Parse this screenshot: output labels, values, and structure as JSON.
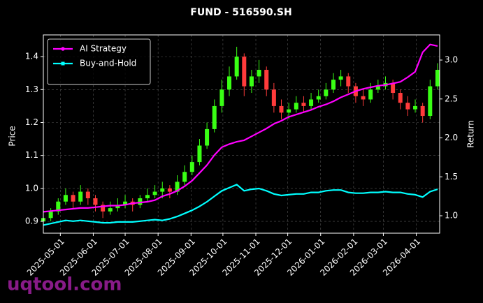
{
  "chart_data": {
    "type": "candlestick",
    "title": "FUND - 516590.SH",
    "ylabel": "Price",
    "y2label": "Return",
    "watermark": "uqtool.com",
    "x": [
      "2025-04-15",
      "2025-04-22",
      "2025-04-29",
      "2025-05-06",
      "2025-05-13",
      "2025-05-20",
      "2025-05-27",
      "2025-06-03",
      "2025-06-10",
      "2025-06-17",
      "2025-06-24",
      "2025-07-01",
      "2025-07-08",
      "2025-07-15",
      "2025-07-22",
      "2025-07-29",
      "2025-08-05",
      "2025-08-12",
      "2025-08-19",
      "2025-08-26",
      "2025-09-02",
      "2025-09-09",
      "2025-09-16",
      "2025-09-23",
      "2025-09-30",
      "2025-10-07",
      "2025-10-14",
      "2025-10-21",
      "2025-10-28",
      "2025-11-04",
      "2025-11-11",
      "2025-11-18",
      "2025-11-25",
      "2025-12-02",
      "2025-12-09",
      "2025-12-16",
      "2025-12-23",
      "2025-12-30",
      "2026-01-06",
      "2026-01-13",
      "2026-01-20",
      "2026-01-27",
      "2026-02-03",
      "2026-02-10",
      "2026-02-17",
      "2026-02-24",
      "2026-03-03",
      "2026-03-10",
      "2026-03-17",
      "2026-03-24",
      "2026-03-31",
      "2026-04-07",
      "2026-04-14",
      "2026-04-21"
    ],
    "open": [
      0.9,
      0.91,
      0.93,
      0.96,
      0.98,
      0.96,
      0.99,
      0.97,
      0.95,
      0.93,
      0.94,
      0.95,
      0.96,
      0.95,
      0.97,
      0.98,
      0.99,
      1.0,
      0.99,
      1.02,
      1.05,
      1.08,
      1.13,
      1.18,
      1.25,
      1.3,
      1.34,
      1.4,
      1.31,
      1.34,
      1.36,
      1.3,
      1.25,
      1.23,
      1.24,
      1.26,
      1.25,
      1.27,
      1.28,
      1.3,
      1.33,
      1.34,
      1.31,
      1.28,
      1.27,
      1.3,
      1.31,
      1.32,
      1.29,
      1.26,
      1.24,
      1.25,
      1.22,
      1.31
    ],
    "high": [
      0.92,
      0.94,
      0.97,
      1.0,
      0.99,
      1.01,
      1.0,
      0.98,
      0.96,
      0.96,
      0.97,
      0.98,
      0.97,
      0.98,
      1.0,
      1.01,
      1.02,
      1.01,
      1.04,
      1.07,
      1.1,
      1.15,
      1.2,
      1.27,
      1.33,
      1.37,
      1.43,
      1.41,
      1.36,
      1.39,
      1.37,
      1.32,
      1.27,
      1.26,
      1.28,
      1.28,
      1.29,
      1.3,
      1.32,
      1.35,
      1.36,
      1.35,
      1.32,
      1.3,
      1.32,
      1.33,
      1.34,
      1.33,
      1.3,
      1.28,
      1.27,
      1.26,
      1.33,
      1.38
    ],
    "low": [
      0.88,
      0.9,
      0.92,
      0.95,
      0.94,
      0.95,
      0.95,
      0.93,
      0.91,
      0.92,
      0.93,
      0.94,
      0.93,
      0.94,
      0.96,
      0.97,
      0.97,
      0.97,
      0.98,
      1.01,
      1.04,
      1.07,
      1.12,
      1.17,
      1.23,
      1.28,
      1.33,
      1.28,
      1.29,
      1.32,
      1.28,
      1.23,
      1.21,
      1.21,
      1.23,
      1.23,
      1.24,
      1.26,
      1.27,
      1.29,
      1.31,
      1.29,
      1.26,
      1.25,
      1.26,
      1.29,
      1.3,
      1.27,
      1.24,
      1.22,
      1.23,
      1.2,
      1.21,
      1.3
    ],
    "close": [
      0.91,
      0.93,
      0.96,
      0.98,
      0.96,
      0.99,
      0.97,
      0.95,
      0.93,
      0.94,
      0.95,
      0.96,
      0.95,
      0.97,
      0.98,
      0.99,
      1.0,
      0.99,
      1.02,
      1.05,
      1.08,
      1.13,
      1.18,
      1.25,
      1.3,
      1.34,
      1.4,
      1.31,
      1.34,
      1.36,
      1.3,
      1.25,
      1.23,
      1.24,
      1.26,
      1.25,
      1.27,
      1.28,
      1.3,
      1.33,
      1.34,
      1.31,
      1.28,
      1.27,
      1.3,
      1.31,
      1.32,
      1.29,
      1.26,
      1.24,
      1.25,
      1.22,
      1.31,
      1.36
    ],
    "up_color": "#39ff14",
    "down_color": "#ff3b3b",
    "series": [
      {
        "name": "AI Strategy",
        "type": "line",
        "axis": "y2",
        "color": "#ff00ff",
        "marker": "circle",
        "values": [
          1.05,
          1.06,
          1.07,
          1.08,
          1.09,
          1.1,
          1.1,
          1.11,
          1.12,
          1.13,
          1.13,
          1.14,
          1.16,
          1.17,
          1.18,
          1.2,
          1.25,
          1.28,
          1.32,
          1.38,
          1.45,
          1.55,
          1.65,
          1.78,
          1.88,
          1.92,
          1.95,
          1.97,
          2.02,
          2.07,
          2.12,
          2.18,
          2.22,
          2.27,
          2.3,
          2.33,
          2.36,
          2.4,
          2.43,
          2.47,
          2.52,
          2.56,
          2.6,
          2.63,
          2.65,
          2.67,
          2.68,
          2.7,
          2.72,
          2.78,
          2.85,
          3.1,
          3.2,
          3.18
        ]
      },
      {
        "name": "Buy-and-Hold",
        "type": "line",
        "axis": "y2",
        "color": "#00ffff",
        "marker": "square",
        "values": [
          0.88,
          0.9,
          0.92,
          0.94,
          0.93,
          0.94,
          0.93,
          0.92,
          0.91,
          0.91,
          0.92,
          0.92,
          0.92,
          0.93,
          0.94,
          0.95,
          0.94,
          0.96,
          0.99,
          1.03,
          1.07,
          1.12,
          1.18,
          1.25,
          1.32,
          1.36,
          1.4,
          1.32,
          1.34,
          1.35,
          1.32,
          1.28,
          1.26,
          1.27,
          1.28,
          1.28,
          1.3,
          1.3,
          1.32,
          1.33,
          1.33,
          1.3,
          1.29,
          1.29,
          1.3,
          1.3,
          1.31,
          1.3,
          1.3,
          1.28,
          1.27,
          1.24,
          1.31,
          1.34
        ]
      }
    ],
    "xlim": [
      "2025-04-15",
      "2026-04-23"
    ],
    "xticks": [
      "2025-05-01",
      "2025-06-01",
      "2025-07-01",
      "2025-08-01",
      "2025-09-01",
      "2025-10-01",
      "2025-11-01",
      "2025-12-01",
      "2026-01-01",
      "2026-02-01",
      "2026-03-01",
      "2026-04-01"
    ],
    "ylim": [
      0.864,
      1.466
    ],
    "yticks": [
      0.9,
      {
        "value": 1,
        "label": "1.0"
      },
      1.1,
      1.2,
      1.3,
      1.4
    ],
    "y2lim": [
      0.776,
      3.323
    ],
    "y2ticks": [
      {
        "value": 1,
        "label": "1.0"
      },
      1.5,
      {
        "value": 2,
        "label": "2.0"
      },
      2.5,
      {
        "value": 3,
        "label": "3.0"
      }
    ],
    "grid": true,
    "legend": "upper left"
  }
}
